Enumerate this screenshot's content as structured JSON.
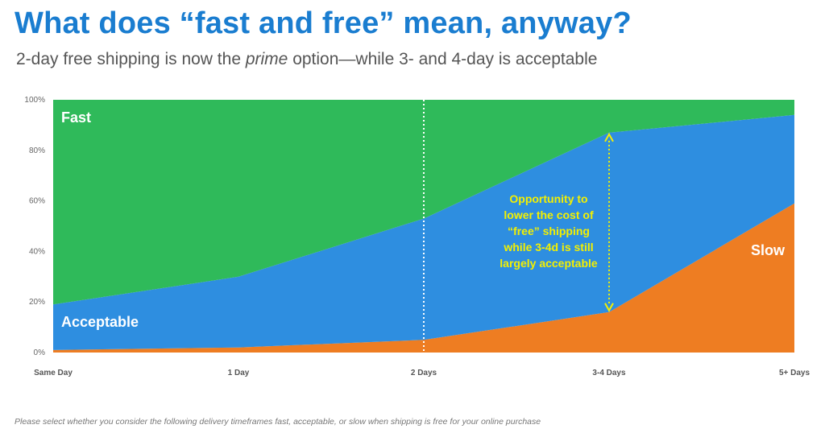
{
  "header": {
    "title": "What does “fast and free” mean, anyway?",
    "subtitle_pre": "2-day free shipping is now the ",
    "subtitle_em": "prime",
    "subtitle_post": " option—while 3- and 4-day is acceptable"
  },
  "chart_data": {
    "type": "area",
    "stacked": true,
    "categories": [
      "Same Day",
      "1 Day",
      "2 Days",
      "3-4 Days",
      "5+ Days"
    ],
    "series": [
      {
        "name": "Slow",
        "values": [
          1,
          2,
          5,
          16,
          59
        ],
        "color": "#ee7d22"
      },
      {
        "name": "Acceptable",
        "values": [
          18,
          28,
          48,
          71,
          35
        ],
        "color": "#2e8ee0"
      },
      {
        "name": "Fast",
        "values": [
          81,
          70,
          47,
          13,
          6
        ],
        "color": "#2fba5a"
      }
    ],
    "ylim": [
      0,
      100
    ],
    "y_ticks": [
      "0%",
      "20%",
      "40%",
      "60%",
      "80%",
      "100%"
    ],
    "y_tick_values": [
      0,
      20,
      40,
      60,
      80,
      100
    ],
    "marker_category": "2 Days",
    "annotation": {
      "lines": [
        "Opportunity to",
        "lower the cost of",
        "“free” shipping",
        "while 3-4d is still",
        "largely acceptable"
      ],
      "category": "3-4 Days",
      "color": "#f4f000"
    }
  },
  "footnote": "Please select whether you consider the following delivery timeframes fast, acceptable, or slow when shipping is free for your online purchase"
}
